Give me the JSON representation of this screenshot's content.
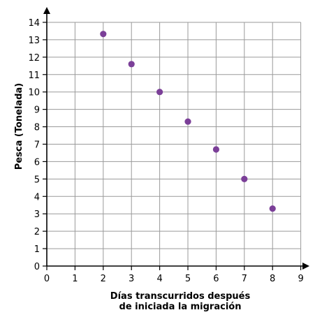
{
  "chart_data": {
    "type": "scatter",
    "x": [
      2,
      3,
      4,
      5,
      6,
      7,
      8
    ],
    "y": [
      13.33,
      11.6,
      10.0,
      8.3,
      6.7,
      5.0,
      3.3
    ],
    "xlabel_lines": [
      "Días transcurridos después",
      "de iniciada la migración"
    ],
    "ylabel": "Pesca (Tonelada)",
    "xlim": [
      0,
      9
    ],
    "ylim": [
      0,
      14
    ],
    "x_ticks": [
      "0",
      "1",
      "2",
      "3",
      "4",
      "5",
      "6",
      "7",
      "8",
      "9"
    ],
    "y_ticks": [
      "0",
      "1",
      "2",
      "3",
      "4",
      "5",
      "6",
      "7",
      "8",
      "9",
      "10",
      "11",
      "12",
      "13",
      "14"
    ],
    "grid": true,
    "point_color": "#7b3f98",
    "axis_color": "#000000",
    "grid_color": "#9a9a9a"
  }
}
